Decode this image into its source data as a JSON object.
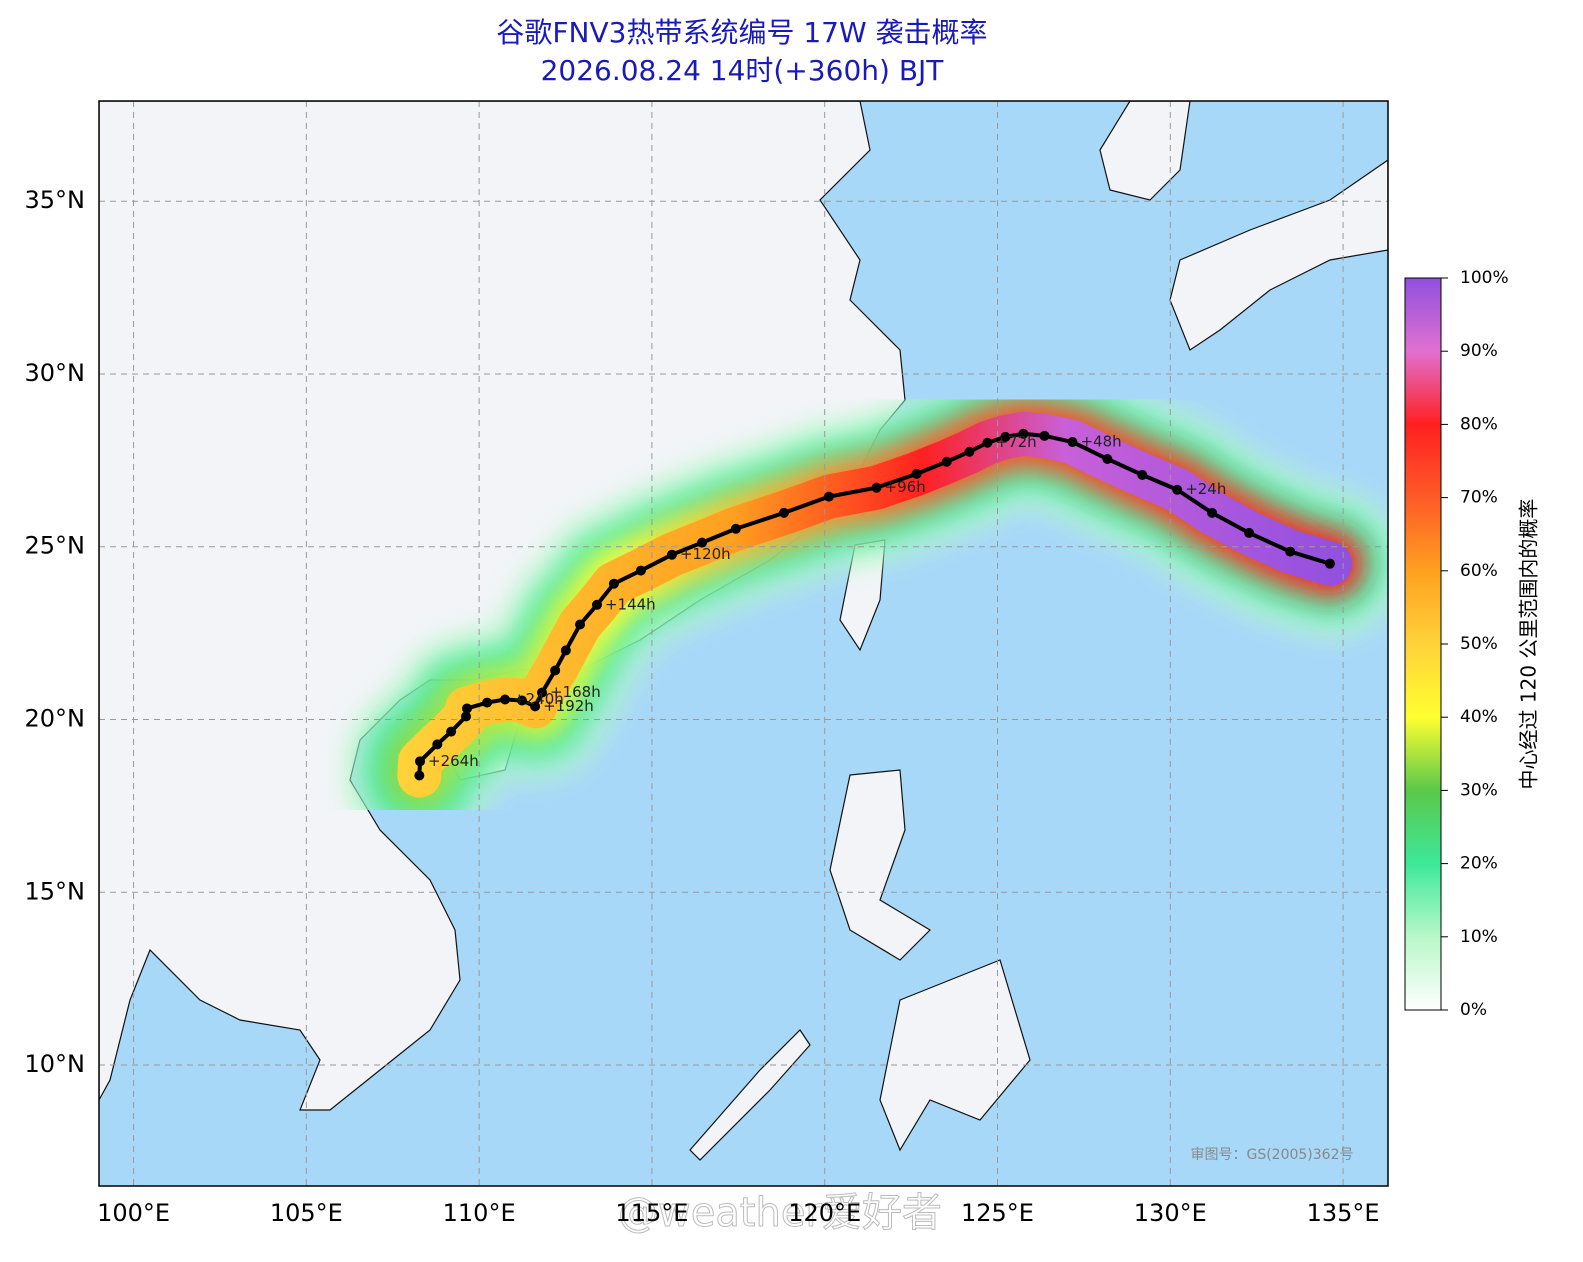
{
  "header": {
    "title": "谷歌FNV3热带系统编号 17W 袭击概率",
    "subtitle": "2026.08.24 14时(+360h) BJT"
  },
  "map": {
    "xlim": [
      99,
      136.3
    ],
    "ylim": [
      6.5,
      37.9
    ],
    "xticks": [
      {
        "value": 100,
        "label": "100°E"
      },
      {
        "value": 105,
        "label": "105°E"
      },
      {
        "value": 110,
        "label": "110°E"
      },
      {
        "value": 115,
        "label": "115°E"
      },
      {
        "value": 120,
        "label": "120°E"
      },
      {
        "value": 125,
        "label": "125°E"
      },
      {
        "value": 130,
        "label": "130°E"
      },
      {
        "value": 135,
        "label": "135°E"
      }
    ],
    "yticks": [
      {
        "value": 10,
        "label": "10°N"
      },
      {
        "value": 15,
        "label": "15°N"
      },
      {
        "value": 20,
        "label": "20°N"
      },
      {
        "value": 25,
        "label": "25°N"
      },
      {
        "value": 30,
        "label": "30°N"
      },
      {
        "value": 35,
        "label": "35°N"
      }
    ],
    "track": [
      {
        "lon": 134.62,
        "lat": 24.51
      },
      {
        "lon": 133.47,
        "lat": 24.86
      },
      {
        "lon": 132.28,
        "lat": 25.4
      },
      {
        "lon": 131.21,
        "lat": 25.98
      },
      {
        "lon": 130.2,
        "lat": 26.65,
        "label": "+24h"
      },
      {
        "lon": 129.19,
        "lat": 27.08
      },
      {
        "lon": 128.18,
        "lat": 27.54
      },
      {
        "lon": 127.17,
        "lat": 28.03,
        "label": "+48h"
      },
      {
        "lon": 126.36,
        "lat": 28.21
      },
      {
        "lon": 125.75,
        "lat": 28.27
      },
      {
        "lon": 125.23,
        "lat": 28.18
      },
      {
        "lon": 124.71,
        "lat": 28.01,
        "label": "+72h"
      },
      {
        "lon": 124.19,
        "lat": 27.75
      },
      {
        "lon": 123.53,
        "lat": 27.46
      },
      {
        "lon": 122.66,
        "lat": 27.11
      },
      {
        "lon": 121.5,
        "lat": 26.71,
        "label": "+96h"
      },
      {
        "lon": 120.12,
        "lat": 26.45
      },
      {
        "lon": 118.82,
        "lat": 25.98
      },
      {
        "lon": 117.43,
        "lat": 25.52
      },
      {
        "lon": 116.45,
        "lat": 25.12
      },
      {
        "lon": 115.58,
        "lat": 24.77,
        "label": "+120h"
      },
      {
        "lon": 114.68,
        "lat": 24.31
      },
      {
        "lon": 113.9,
        "lat": 23.93
      },
      {
        "lon": 113.41,
        "lat": 23.32,
        "label": "+144h"
      },
      {
        "lon": 112.92,
        "lat": 22.75
      },
      {
        "lon": 112.51,
        "lat": 22.0
      },
      {
        "lon": 112.2,
        "lat": 21.42
      },
      {
        "lon": 111.82,
        "lat": 20.78,
        "label": "+168h"
      },
      {
        "lon": 111.62,
        "lat": 20.38,
        "label": "+192h"
      },
      {
        "lon": 111.24,
        "lat": 20.55
      },
      {
        "lon": 110.75,
        "lat": 20.58,
        "label": "+240h"
      },
      {
        "lon": 110.23,
        "lat": 20.49
      },
      {
        "lon": 109.65,
        "lat": 20.32
      },
      {
        "lon": 109.62,
        "lat": 20.09
      },
      {
        "lon": 109.19,
        "lat": 19.65
      },
      {
        "lon": 108.79,
        "lat": 19.28
      },
      {
        "lon": 108.29,
        "lat": 18.79,
        "label": "+264h"
      },
      {
        "lon": 108.27,
        "lat": 18.38
      }
    ],
    "approval": "审图号：GS(2005)362号",
    "watermark": "@weather爱好者"
  },
  "colorbar": {
    "label": "中心经过 120 公里范围内的概率",
    "lim": [
      0,
      100
    ],
    "ticks": [
      {
        "value": 0,
        "label": "0%"
      },
      {
        "value": 10,
        "label": "10%"
      },
      {
        "value": 20,
        "label": "20%"
      },
      {
        "value": 30,
        "label": "30%"
      },
      {
        "value": 40,
        "label": "40%"
      },
      {
        "value": 50,
        "label": "50%"
      },
      {
        "value": 60,
        "label": "60%"
      },
      {
        "value": 70,
        "label": "70%"
      },
      {
        "value": 80,
        "label": "80%"
      },
      {
        "value": 90,
        "label": "90%"
      },
      {
        "value": 100,
        "label": "100%"
      }
    ]
  }
}
